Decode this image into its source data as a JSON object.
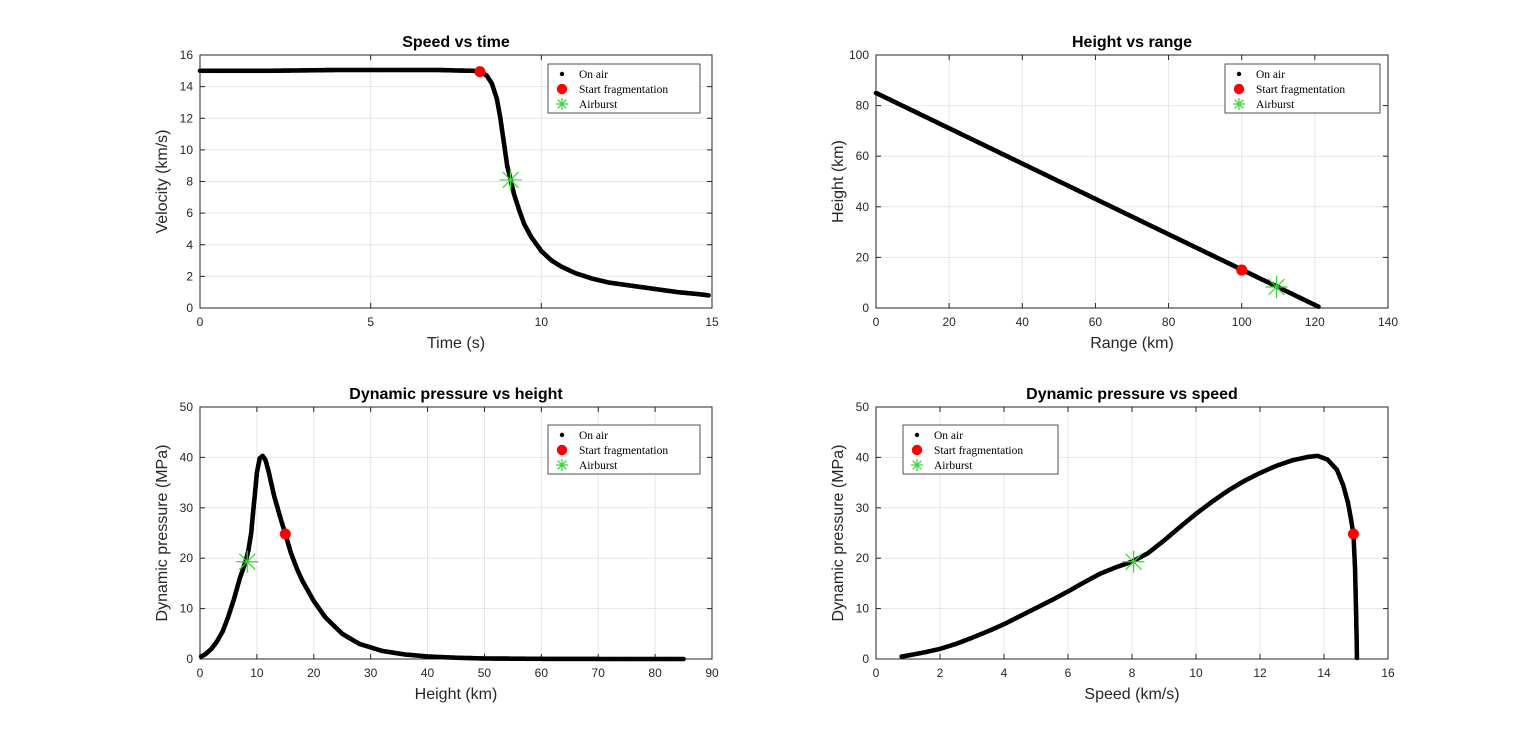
{
  "chart_data": [
    {
      "type": "scatter",
      "title": "Speed vs time",
      "xlabel": "Time (s)",
      "ylabel": "Velocity (km/s)",
      "xlim": [
        0,
        15
      ],
      "ylim": [
        0,
        16
      ],
      "xticks": [
        "0",
        "5",
        "10",
        "15"
      ],
      "yticks": [
        "0",
        "2",
        "4",
        "6",
        "8",
        "10",
        "12",
        "14",
        "16"
      ],
      "legend_position": "top-right",
      "grid": true,
      "legend": [
        "On air",
        "Start fragmentation",
        "Airburst"
      ],
      "series": [
        {
          "name": "On air",
          "x": [
            0,
            2,
            4,
            6,
            7,
            7.5,
            8,
            8.2,
            8.4,
            8.55,
            8.7,
            8.8,
            8.9,
            9.0,
            9.1,
            9.2,
            9.35,
            9.5,
            9.7,
            10.0,
            10.3,
            10.6,
            11.0,
            11.5,
            12.0,
            12.5,
            13.0,
            13.5,
            14.0,
            14.5,
            14.9
          ],
          "y": [
            15.0,
            15.0,
            15.05,
            15.05,
            15.05,
            15.02,
            15.0,
            14.95,
            14.7,
            14.2,
            13.2,
            12.0,
            10.5,
            9.0,
            8.1,
            7.2,
            6.2,
            5.3,
            4.5,
            3.6,
            3.0,
            2.6,
            2.2,
            1.85,
            1.6,
            1.45,
            1.3,
            1.15,
            1.0,
            0.9,
            0.8
          ]
        },
        {
          "name": "Start fragmentation",
          "x": [
            8.2
          ],
          "y": [
            14.95
          ]
        },
        {
          "name": "Airburst",
          "x": [
            9.1
          ],
          "y": [
            8.1
          ]
        }
      ]
    },
    {
      "type": "scatter",
      "title": "Height vs range",
      "xlabel": "Range (km)",
      "ylabel": "Height (km)",
      "xlim": [
        0,
        140
      ],
      "ylim": [
        0,
        100
      ],
      "xticks": [
        "0",
        "20",
        "40",
        "60",
        "80",
        "100",
        "120",
        "140"
      ],
      "yticks": [
        "0",
        "20",
        "40",
        "60",
        "80",
        "100"
      ],
      "legend_position": "top-right",
      "grid": true,
      "legend": [
        "On air",
        "Start fragmentation",
        "Airburst"
      ],
      "series": [
        {
          "name": "On air",
          "x": [
            0,
            121
          ],
          "y": [
            85,
            0.5
          ]
        },
        {
          "name": "Start fragmentation",
          "x": [
            100
          ],
          "y": [
            15
          ]
        },
        {
          "name": "Airburst",
          "x": [
            109.5
          ],
          "y": [
            8.3
          ]
        }
      ]
    },
    {
      "type": "scatter",
      "title": "Dynamic pressure vs height",
      "xlabel": "Height (km)",
      "ylabel": "Dynamic pressure (MPa)",
      "xlim": [
        0,
        90
      ],
      "ylim": [
        0,
        50
      ],
      "xticks": [
        "0",
        "10",
        "20",
        "30",
        "40",
        "50",
        "60",
        "70",
        "80",
        "90"
      ],
      "yticks": [
        "0",
        "10",
        "20",
        "30",
        "40",
        "50"
      ],
      "legend_position": "top-right",
      "grid": true,
      "legend": [
        "On air",
        "Start fragmentation",
        "Airburst"
      ],
      "series": [
        {
          "name": "On air",
          "x": [
            0.2,
            1,
            2,
            3,
            4,
            5,
            6,
            7,
            8,
            8.5,
            9,
            9.5,
            10,
            10.5,
            11,
            11.5,
            12,
            12.5,
            13,
            14,
            15,
            16,
            17,
            18,
            20,
            22,
            25,
            28,
            32,
            36,
            40,
            45,
            50,
            60,
            70,
            85
          ],
          "y": [
            0.5,
            1.0,
            2.0,
            3.5,
            5.5,
            8.5,
            12,
            16,
            19.3,
            21.5,
            25,
            31,
            37,
            39.8,
            40.3,
            39.5,
            37.5,
            35,
            32.5,
            28.5,
            24.8,
            21,
            18,
            15.5,
            11.5,
            8.3,
            5.0,
            3.0,
            1.6,
            0.9,
            0.5,
            0.25,
            0.1,
            0.03,
            0.01,
            0.0
          ]
        },
        {
          "name": "Start fragmentation",
          "x": [
            15
          ],
          "y": [
            24.8
          ]
        },
        {
          "name": "Airburst",
          "x": [
            8.3
          ],
          "y": [
            19.3
          ]
        }
      ]
    },
    {
      "type": "scatter",
      "title": "Dynamic pressure vs speed",
      "xlabel": "Speed (km/s)",
      "ylabel": "Dynamic pressure (MPa)",
      "xlim": [
        0,
        16
      ],
      "ylim": [
        0,
        50
      ],
      "xticks": [
        "0",
        "2",
        "4",
        "6",
        "8",
        "10",
        "12",
        "14",
        "16"
      ],
      "yticks": [
        "0",
        "10",
        "20",
        "30",
        "40",
        "50"
      ],
      "legend_position": "top-left",
      "grid": true,
      "legend": [
        "On air",
        "Start fragmentation",
        "Airburst"
      ],
      "series": [
        {
          "name": "On air",
          "x": [
            0.8,
            1.0,
            1.5,
            2.0,
            2.5,
            3.0,
            3.5,
            4.0,
            4.5,
            5.0,
            5.5,
            6.0,
            6.5,
            7.0,
            7.5,
            8.0,
            8.5,
            9.0,
            9.5,
            10.0,
            10.5,
            11.0,
            11.5,
            12.0,
            12.5,
            13.0,
            13.5,
            13.8,
            14.1,
            14.4,
            14.6,
            14.75,
            14.85,
            14.92,
            14.97,
            15.0,
            15.02,
            15.03
          ],
          "y": [
            0.5,
            0.7,
            1.3,
            2.0,
            3.0,
            4.2,
            5.5,
            6.9,
            8.5,
            10.1,
            11.7,
            13.4,
            15.2,
            16.9,
            18.2,
            19.3,
            21.0,
            23.5,
            26.2,
            28.8,
            31.2,
            33.4,
            35.3,
            36.9,
            38.3,
            39.4,
            40.1,
            40.3,
            39.6,
            37.6,
            34.5,
            31.0,
            27.5,
            24.8,
            18,
            10,
            4,
            0.2
          ]
        },
        {
          "name": "Start fragmentation",
          "x": [
            14.92
          ],
          "y": [
            24.8
          ]
        },
        {
          "name": "Airburst",
          "x": [
            8.05
          ],
          "y": [
            19.3
          ]
        }
      ]
    }
  ]
}
